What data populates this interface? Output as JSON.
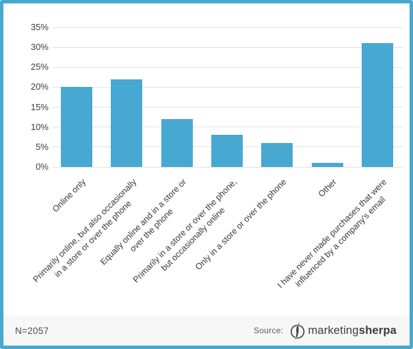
{
  "chart_data": {
    "type": "bar",
    "title": "",
    "xlabel": "",
    "ylabel": "",
    "ylim": [
      0,
      35
    ],
    "grid": true,
    "legend": "none",
    "y_ticks": [
      "35%",
      "30%",
      "25%",
      "20%",
      "15%",
      "10%",
      "5%",
      "0%"
    ],
    "categories": [
      "Online only",
      "Primarily online, but also occasionally in a store or over the phone",
      "Equally online and in a store or over the phone",
      "Primarily in a store or over the phone, but occasionally online",
      "Only in a store or over the phone",
      "Other",
      "I have never made purchases that were influenced by a company's email"
    ],
    "category_lines": [
      [
        "Online only"
      ],
      [
        "Primarily online, but also occasionally",
        "in a store or over the phone"
      ],
      [
        "Equally online and in a store or",
        "over the phone"
      ],
      [
        "Primarily in a store or over the phone,",
        "but occasionally online"
      ],
      [
        "Only in a store or over the phone"
      ],
      [
        "Other"
      ],
      [
        "I have never made purchases that were",
        "influenced by a company's email"
      ]
    ],
    "values": [
      20,
      22,
      12,
      8,
      6,
      1,
      31
    ],
    "value_unit": "%"
  },
  "footer": {
    "sample_size": "N=2057",
    "source_label": "Source:",
    "brand_regular": "marketing",
    "brand_bold": "sherpa"
  },
  "colors": {
    "accent": "#47a8d1",
    "bar": "#47a8d1",
    "border": "#47a8d1",
    "gridline": "#e2e2e2",
    "axis_text": "#3d3d3d",
    "footer_background": "#f7f7f7"
  }
}
